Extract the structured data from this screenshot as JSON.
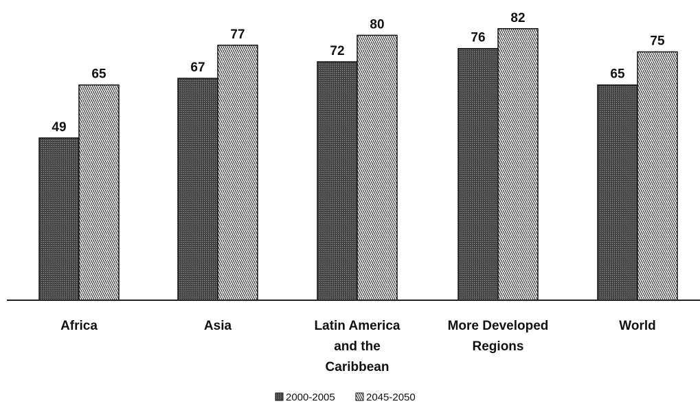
{
  "chart_data": {
    "type": "bar",
    "title": "",
    "xlabel": "",
    "ylabel": "",
    "ylim": [
      0,
      100
    ],
    "grid": false,
    "legend_position": "bottom",
    "categories": [
      [
        "Africa"
      ],
      [
        "Asia"
      ],
      [
        "Latin America",
        "and the",
        "Caribbean"
      ],
      [
        "More Developed",
        "Regions"
      ],
      [
        "World"
      ]
    ],
    "series": [
      {
        "name": "2000-2005",
        "values": [
          49,
          67,
          72,
          76,
          65
        ],
        "fill": "dark-dotted",
        "color": "#555555"
      },
      {
        "name": "2045-2050",
        "values": [
          65,
          77,
          80,
          82,
          75
        ],
        "fill": "diagonal-hatch",
        "color": "#ffffff"
      }
    ]
  }
}
